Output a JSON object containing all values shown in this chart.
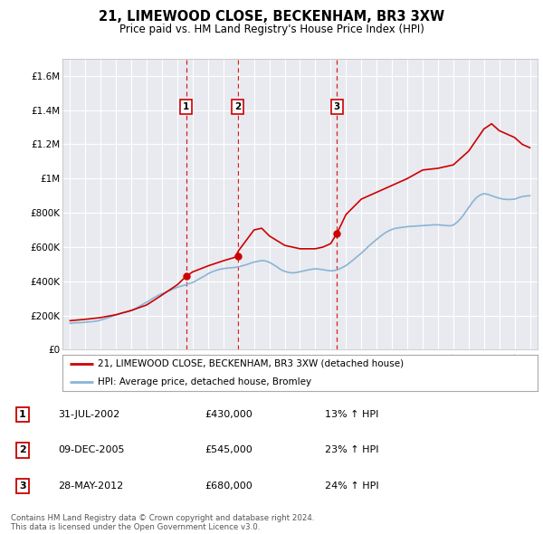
{
  "title": "21, LIMEWOOD CLOSE, BECKENHAM, BR3 3XW",
  "subtitle": "Price paid vs. HM Land Registry's House Price Index (HPI)",
  "hpi_label": "HPI: Average price, detached house, Bromley",
  "property_label": "21, LIMEWOOD CLOSE, BECKENHAM, BR3 3XW (detached house)",
  "footer": "Contains HM Land Registry data © Crown copyright and database right 2024.\nThis data is licensed under the Open Government Licence v3.0.",
  "transactions": [
    {
      "num": 1,
      "date": "31-JUL-2002",
      "price": "£430,000",
      "change": "13% ↑ HPI",
      "year": 2002.58,
      "price_val": 430000
    },
    {
      "num": 2,
      "date": "09-DEC-2005",
      "price": "£545,000",
      "change": "23% ↑ HPI",
      "year": 2005.94,
      "price_val": 545000
    },
    {
      "num": 3,
      "date": "28-MAY-2012",
      "price": "£680,000",
      "change": "24% ↑ HPI",
      "year": 2012.41,
      "price_val": 680000
    }
  ],
  "property_color": "#cc0000",
  "hpi_color": "#8ab4d4",
  "background_color": "#ffffff",
  "plot_bg_color": "#e8eaf0",
  "grid_color": "#ffffff",
  "ylim": [
    0,
    1700000
  ],
  "yticks": [
    0,
    200000,
    400000,
    600000,
    800000,
    1000000,
    1200000,
    1400000,
    1600000
  ],
  "ytick_labels": [
    "£0",
    "£200K",
    "£400K",
    "£600K",
    "£800K",
    "£1M",
    "£1.2M",
    "£1.4M",
    "£1.6M"
  ],
  "xlim_start": 1994.5,
  "xlim_end": 2025.5,
  "hpi_years": [
    1995,
    1995.25,
    1995.5,
    1995.75,
    1996,
    1996.25,
    1996.5,
    1996.75,
    1997,
    1997.25,
    1997.5,
    1997.75,
    1998,
    1998.25,
    1998.5,
    1998.75,
    1999,
    1999.25,
    1999.5,
    1999.75,
    2000,
    2000.25,
    2000.5,
    2000.75,
    2001,
    2001.25,
    2001.5,
    2001.75,
    2002,
    2002.25,
    2002.5,
    2002.75,
    2003,
    2003.25,
    2003.5,
    2003.75,
    2004,
    2004.25,
    2004.5,
    2004.75,
    2005,
    2005.25,
    2005.5,
    2005.75,
    2006,
    2006.25,
    2006.5,
    2006.75,
    2007,
    2007.25,
    2007.5,
    2007.75,
    2008,
    2008.25,
    2008.5,
    2008.75,
    2009,
    2009.25,
    2009.5,
    2009.75,
    2010,
    2010.25,
    2010.5,
    2010.75,
    2011,
    2011.25,
    2011.5,
    2011.75,
    2012,
    2012.25,
    2012.5,
    2012.75,
    2013,
    2013.25,
    2013.5,
    2013.75,
    2014,
    2014.25,
    2014.5,
    2014.75,
    2015,
    2015.25,
    2015.5,
    2015.75,
    2016,
    2016.25,
    2016.5,
    2016.75,
    2017,
    2017.25,
    2017.5,
    2017.75,
    2018,
    2018.25,
    2018.5,
    2018.75,
    2019,
    2019.25,
    2019.5,
    2019.75,
    2020,
    2020.25,
    2020.5,
    2020.75,
    2021,
    2021.25,
    2021.5,
    2021.75,
    2022,
    2022.25,
    2022.5,
    2022.75,
    2023,
    2023.25,
    2023.5,
    2023.75,
    2024,
    2024.25,
    2024.5,
    2024.75,
    2025
  ],
  "hpi_vals": [
    155000,
    157000,
    158000,
    159000,
    161000,
    163000,
    165000,
    168000,
    174000,
    180000,
    188000,
    196000,
    204000,
    211000,
    217000,
    222000,
    229000,
    240000,
    253000,
    266000,
    278000,
    292000,
    306000,
    318000,
    328000,
    337000,
    346000,
    356000,
    365000,
    372000,
    378000,
    386000,
    393000,
    405000,
    418000,
    430000,
    444000,
    455000,
    463000,
    470000,
    474000,
    477000,
    479000,
    481000,
    485000,
    491000,
    497000,
    505000,
    512000,
    517000,
    521000,
    519000,
    511000,
    498000,
    484000,
    468000,
    458000,
    452000,
    449000,
    451000,
    456000,
    461000,
    466000,
    470000,
    473000,
    471000,
    468000,
    464000,
    461000,
    463000,
    470000,
    480000,
    492000,
    509000,
    527000,
    546000,
    564000,
    585000,
    607000,
    626000,
    645000,
    663000,
    680000,
    693000,
    703000,
    710000,
    713000,
    716000,
    719000,
    721000,
    722000,
    724000,
    725000,
    727000,
    728000,
    730000,
    730000,
    728000,
    726000,
    724000,
    728000,
    745000,
    768000,
    798000,
    830000,
    862000,
    888000,
    904000,
    912000,
    908000,
    900000,
    892000,
    885000,
    880000,
    878000,
    878000,
    880000,
    888000,
    895000,
    898000,
    900000
  ],
  "prop_keypoints_x": [
    1995,
    1996,
    1997,
    1998,
    1999,
    2000,
    2001,
    2002,
    2002.58,
    2003,
    2004,
    2005,
    2005.94,
    2006,
    2007,
    2007.5,
    2008,
    2009,
    2010,
    2011,
    2011.5,
    2012,
    2012.41,
    2013,
    2014,
    2015,
    2016,
    2017,
    2018,
    2019,
    2020,
    2021,
    2022,
    2022.5,
    2023,
    2023.5,
    2024,
    2024.5,
    2025
  ],
  "prop_keypoints_y": [
    170000,
    178000,
    188000,
    205000,
    230000,
    262000,
    320000,
    380000,
    430000,
    455000,
    490000,
    520000,
    545000,
    580000,
    700000,
    710000,
    665000,
    610000,
    590000,
    590000,
    600000,
    620000,
    680000,
    790000,
    880000,
    920000,
    960000,
    1000000,
    1050000,
    1060000,
    1080000,
    1160000,
    1290000,
    1320000,
    1280000,
    1260000,
    1240000,
    1200000,
    1180000
  ]
}
